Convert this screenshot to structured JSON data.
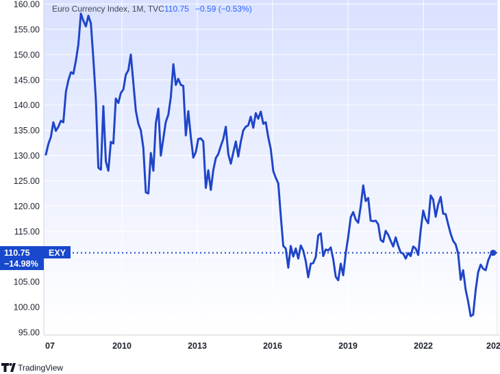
{
  "header": {
    "instrument": "Euro Currency Index, 1M, TVC",
    "last_value": "110.75",
    "change": "−0.59 (−0.53%)",
    "change_color": "#2962ff"
  },
  "badge": {
    "price": "110.75",
    "change_pct": "−14.98%",
    "symbol": "EXY",
    "color": "#1848cc"
  },
  "brand": {
    "name": "TradingView",
    "logo": "tradingview-logo-icon"
  },
  "colors": {
    "line": "#1f45c8",
    "plot_bg_top": "#d9e1ff",
    "plot_bg_bottom": "#ffffff",
    "grid": "#ffffff",
    "badge": "#1848cc"
  },
  "chart_data": {
    "type": "line",
    "title": "Euro Currency Index, 1M, TVC",
    "xlabel": "",
    "ylabel": "",
    "x_ticks": [
      "07",
      "2010",
      "2013",
      "2016",
      "2019",
      "2022",
      "202"
    ],
    "y_ticks": [
      "160.00",
      "155.00",
      "150.00",
      "145.00",
      "140.00",
      "135.00",
      "130.00",
      "125.00",
      "120.00",
      "115.00",
      "110.00",
      "105.00",
      "100.00",
      "95.00"
    ],
    "xlim": [
      2007.0,
      2024.9
    ],
    "ylim": [
      94.5,
      160.7
    ],
    "grid": true,
    "current_value": 110.75,
    "series": [
      {
        "values": [
          [
            2007.0,
            130.2
          ],
          [
            2007.1,
            132.3
          ],
          [
            2007.2,
            133.7
          ],
          [
            2007.3,
            136.6
          ],
          [
            2007.4,
            134.9
          ],
          [
            2007.5,
            135.7
          ],
          [
            2007.6,
            136.9
          ],
          [
            2007.7,
            136.6
          ],
          [
            2007.8,
            142.6
          ],
          [
            2007.9,
            144.9
          ],
          [
            2008.0,
            146.5
          ],
          [
            2008.1,
            146.2
          ],
          [
            2008.2,
            148.8
          ],
          [
            2008.3,
            152.0
          ],
          [
            2008.4,
            158.1
          ],
          [
            2008.5,
            156.7
          ],
          [
            2008.6,
            155.6
          ],
          [
            2008.7,
            157.7
          ],
          [
            2008.8,
            156.2
          ],
          [
            2008.9,
            149.2
          ],
          [
            2009.0,
            141.0
          ],
          [
            2009.1,
            127.6
          ],
          [
            2009.2,
            127.2
          ],
          [
            2009.3,
            139.8
          ],
          [
            2009.4,
            128.8
          ],
          [
            2009.5,
            127.0
          ],
          [
            2009.6,
            132.7
          ],
          [
            2009.7,
            132.4
          ],
          [
            2009.8,
            141.3
          ],
          [
            2009.9,
            140.4
          ],
          [
            2010.0,
            142.4
          ],
          [
            2010.1,
            143.1
          ],
          [
            2010.2,
            146.0
          ],
          [
            2010.3,
            146.9
          ],
          [
            2010.4,
            150.0
          ],
          [
            2010.5,
            144.4
          ],
          [
            2010.6,
            138.9
          ],
          [
            2010.7,
            136.3
          ],
          [
            2010.8,
            135.0
          ],
          [
            2010.9,
            131.5
          ],
          [
            2011.0,
            122.7
          ],
          [
            2011.1,
            122.5
          ],
          [
            2011.2,
            130.5
          ],
          [
            2011.3,
            127.0
          ],
          [
            2011.4,
            136.4
          ],
          [
            2011.5,
            139.3
          ],
          [
            2011.6,
            130.0
          ],
          [
            2011.7,
            133.4
          ],
          [
            2011.8,
            136.7
          ],
          [
            2011.9,
            138.1
          ],
          [
            2012.0,
            141.6
          ],
          [
            2012.1,
            148.1
          ],
          [
            2012.2,
            144.0
          ],
          [
            2012.3,
            145.2
          ],
          [
            2012.4,
            144.0
          ],
          [
            2012.5,
            143.8
          ],
          [
            2012.6,
            134.0
          ],
          [
            2012.7,
            138.8
          ],
          [
            2012.8,
            133.7
          ],
          [
            2012.9,
            129.6
          ],
          [
            2013.0,
            130.7
          ],
          [
            2013.1,
            133.3
          ],
          [
            2013.2,
            133.4
          ],
          [
            2013.3,
            132.8
          ],
          [
            2013.4,
            123.6
          ],
          [
            2013.5,
            127.1
          ],
          [
            2013.6,
            123.2
          ],
          [
            2013.7,
            127.1
          ],
          [
            2013.8,
            129.5
          ],
          [
            2013.9,
            130.3
          ],
          [
            2014.0,
            131.9
          ],
          [
            2014.1,
            133.3
          ],
          [
            2014.2,
            135.7
          ],
          [
            2014.3,
            130.3
          ],
          [
            2014.4,
            128.4
          ],
          [
            2014.5,
            130.6
          ],
          [
            2014.6,
            132.8
          ],
          [
            2014.7,
            129.8
          ],
          [
            2014.8,
            132.7
          ],
          [
            2014.9,
            135.0
          ],
          [
            2015.0,
            135.7
          ],
          [
            2015.1,
            136.0
          ],
          [
            2015.2,
            137.7
          ],
          [
            2015.3,
            135.5
          ],
          [
            2015.4,
            138.4
          ],
          [
            2015.5,
            137.3
          ],
          [
            2015.6,
            138.7
          ],
          [
            2015.7,
            136.3
          ],
          [
            2015.8,
            136.6
          ],
          [
            2015.9,
            133.6
          ],
          [
            2016.0,
            131.3
          ],
          [
            2016.1,
            126.9
          ],
          [
            2016.2,
            125.6
          ],
          [
            2016.3,
            124.5
          ],
          [
            2016.4,
            118.1
          ],
          [
            2016.5,
            112.1
          ],
          [
            2016.6,
            111.6
          ],
          [
            2016.7,
            107.8
          ],
          [
            2016.8,
            112.1
          ],
          [
            2016.9,
            110.0
          ],
          [
            2017.0,
            111.6
          ],
          [
            2017.1,
            109.6
          ],
          [
            2017.2,
            112.2
          ],
          [
            2017.3,
            111.2
          ],
          [
            2017.4,
            109.1
          ],
          [
            2017.5,
            105.9
          ],
          [
            2017.6,
            108.6
          ],
          [
            2017.7,
            108.7
          ],
          [
            2017.8,
            109.9
          ],
          [
            2017.9,
            114.2
          ],
          [
            2018.0,
            114.6
          ],
          [
            2018.1,
            110.1
          ],
          [
            2018.2,
            111.4
          ],
          [
            2018.3,
            111.2
          ],
          [
            2018.4,
            111.8
          ],
          [
            2018.5,
            109.5
          ],
          [
            2018.6,
            106.0
          ],
          [
            2018.7,
            105.3
          ],
          [
            2018.8,
            108.6
          ],
          [
            2018.9,
            106.3
          ],
          [
            2019.0,
            110.7
          ],
          [
            2019.1,
            113.9
          ],
          [
            2019.2,
            117.8
          ],
          [
            2019.3,
            118.8
          ],
          [
            2019.4,
            117.3
          ],
          [
            2019.5,
            116.7
          ],
          [
            2019.6,
            120.0
          ],
          [
            2019.7,
            124.1
          ],
          [
            2019.8,
            121.0
          ],
          [
            2019.9,
            121.6
          ],
          [
            2020.0,
            117.1
          ],
          [
            2020.1,
            117.0
          ],
          [
            2020.2,
            117.1
          ],
          [
            2020.3,
            116.4
          ],
          [
            2020.4,
            113.3
          ],
          [
            2020.5,
            112.9
          ],
          [
            2020.6,
            115.1
          ],
          [
            2020.7,
            114.3
          ],
          [
            2020.8,
            113.1
          ],
          [
            2020.9,
            112.0
          ],
          [
            2021.0,
            113.8
          ],
          [
            2021.1,
            112.1
          ],
          [
            2021.2,
            110.8
          ],
          [
            2021.3,
            110.6
          ],
          [
            2021.4,
            109.6
          ],
          [
            2021.5,
            110.7
          ],
          [
            2021.6,
            110.1
          ],
          [
            2021.7,
            112.0
          ],
          [
            2021.8,
            111.6
          ],
          [
            2021.9,
            110.3
          ],
          [
            2022.0,
            115.2
          ],
          [
            2022.1,
            119.1
          ],
          [
            2022.2,
            117.4
          ],
          [
            2022.3,
            116.6
          ],
          [
            2022.4,
            122.1
          ],
          [
            2022.5,
            121.3
          ],
          [
            2022.6,
            117.9
          ],
          [
            2022.7,
            120.3
          ],
          [
            2022.8,
            121.8
          ],
          [
            2022.9,
            118.5
          ],
          [
            2023.0,
            118.4
          ],
          [
            2023.1,
            116.4
          ],
          [
            2023.2,
            114.5
          ],
          [
            2023.3,
            113.1
          ],
          [
            2023.4,
            112.4
          ],
          [
            2023.5,
            110.6
          ],
          [
            2023.6,
            105.4
          ],
          [
            2023.7,
            107.3
          ],
          [
            2023.8,
            103.4
          ],
          [
            2023.9,
            101.1
          ],
          [
            2024.0,
            98.2
          ],
          [
            2024.1,
            98.5
          ],
          [
            2024.2,
            103.4
          ],
          [
            2024.3,
            106.9
          ],
          [
            2024.4,
            108.4
          ],
          [
            2024.5,
            107.6
          ],
          [
            2024.6,
            107.3
          ],
          [
            2024.7,
            109.2
          ],
          [
            2024.8,
            110.4
          ],
          [
            2024.9,
            110.75
          ]
        ]
      }
    ]
  }
}
